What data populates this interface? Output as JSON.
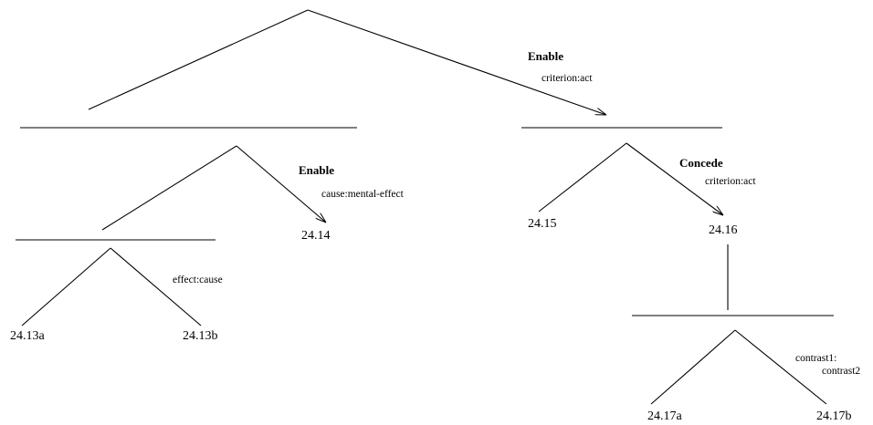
{
  "leaves": {
    "n2413a": "24.13a",
    "n2413b": "24.13b",
    "n2414": "24.14",
    "n2415": "24.15",
    "n2416": "24.16",
    "n2417a": "24.17a",
    "n2417b": "24.17b"
  },
  "relations": {
    "root": {
      "name": "Enable",
      "label": "criterion:act"
    },
    "left": {
      "name": "Enable",
      "label": "cause:mental-effect"
    },
    "leftsub": {
      "label": "effect:cause"
    },
    "right": {
      "name": "Concede",
      "label": "criterion:act"
    },
    "contrast": {
      "label_line1": "contrast1:",
      "label_line2": "contrast2"
    }
  }
}
